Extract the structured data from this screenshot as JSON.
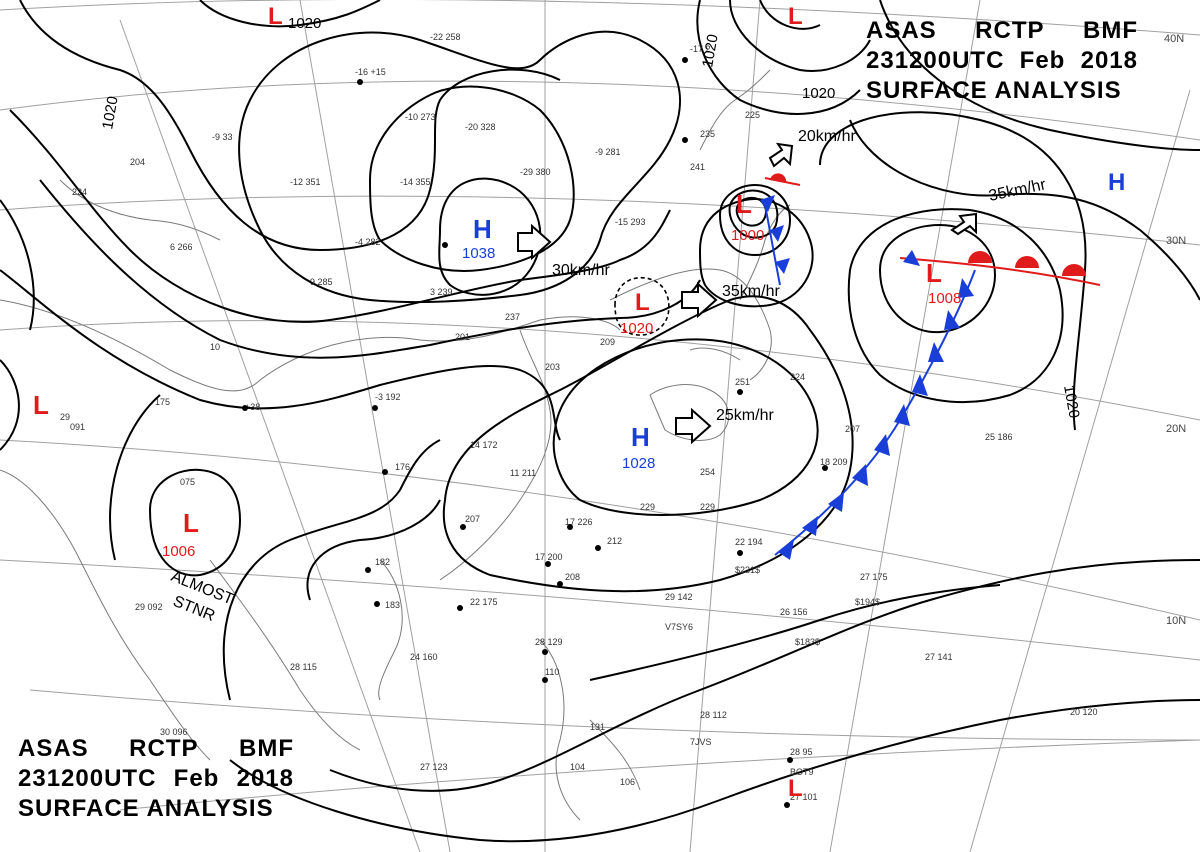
{
  "header": {
    "line1": [
      "ASAS",
      "RCTP",
      "BMF"
    ],
    "line2_time": "231200UTC",
    "line2_month": "Feb",
    "line2_year": "2018",
    "line3": "SURFACE ANALYSIS"
  },
  "systems": {
    "highs": [
      {
        "symbol": "H",
        "pressure": "1038"
      },
      {
        "symbol": "H",
        "pressure": "1028"
      },
      {
        "symbol": "H",
        "pressure": ""
      }
    ],
    "lows": [
      {
        "symbol": "L",
        "pressure": "1000"
      },
      {
        "symbol": "L",
        "pressure": "1008"
      },
      {
        "symbol": "L",
        "pressure": "1020"
      },
      {
        "symbol": "L",
        "pressure": "1006"
      },
      {
        "symbol": "L",
        "pressure": ""
      },
      {
        "symbol": "L",
        "pressure": ""
      },
      {
        "symbol": "L",
        "pressure": ""
      },
      {
        "symbol": "L",
        "pressure": ""
      }
    ]
  },
  "isobar_labels": [
    "1020",
    "1020",
    "1020",
    "1020",
    "1020"
  ],
  "motion_labels": [
    "30km/hr",
    "35km/hr",
    "25km/hr",
    "20km/hr",
    "35km/hr"
  ],
  "almost_stationary": {
    "line1": "ALMOST",
    "line2": "STNR"
  },
  "latitudes": [
    "40N",
    "30N",
    "20N",
    "10N"
  ],
  "colors": {
    "high": "#1a3fd8",
    "low": "#e01b1b",
    "isobar": "#000000",
    "grid": "#9a9a9a",
    "coast": "#777777"
  }
}
